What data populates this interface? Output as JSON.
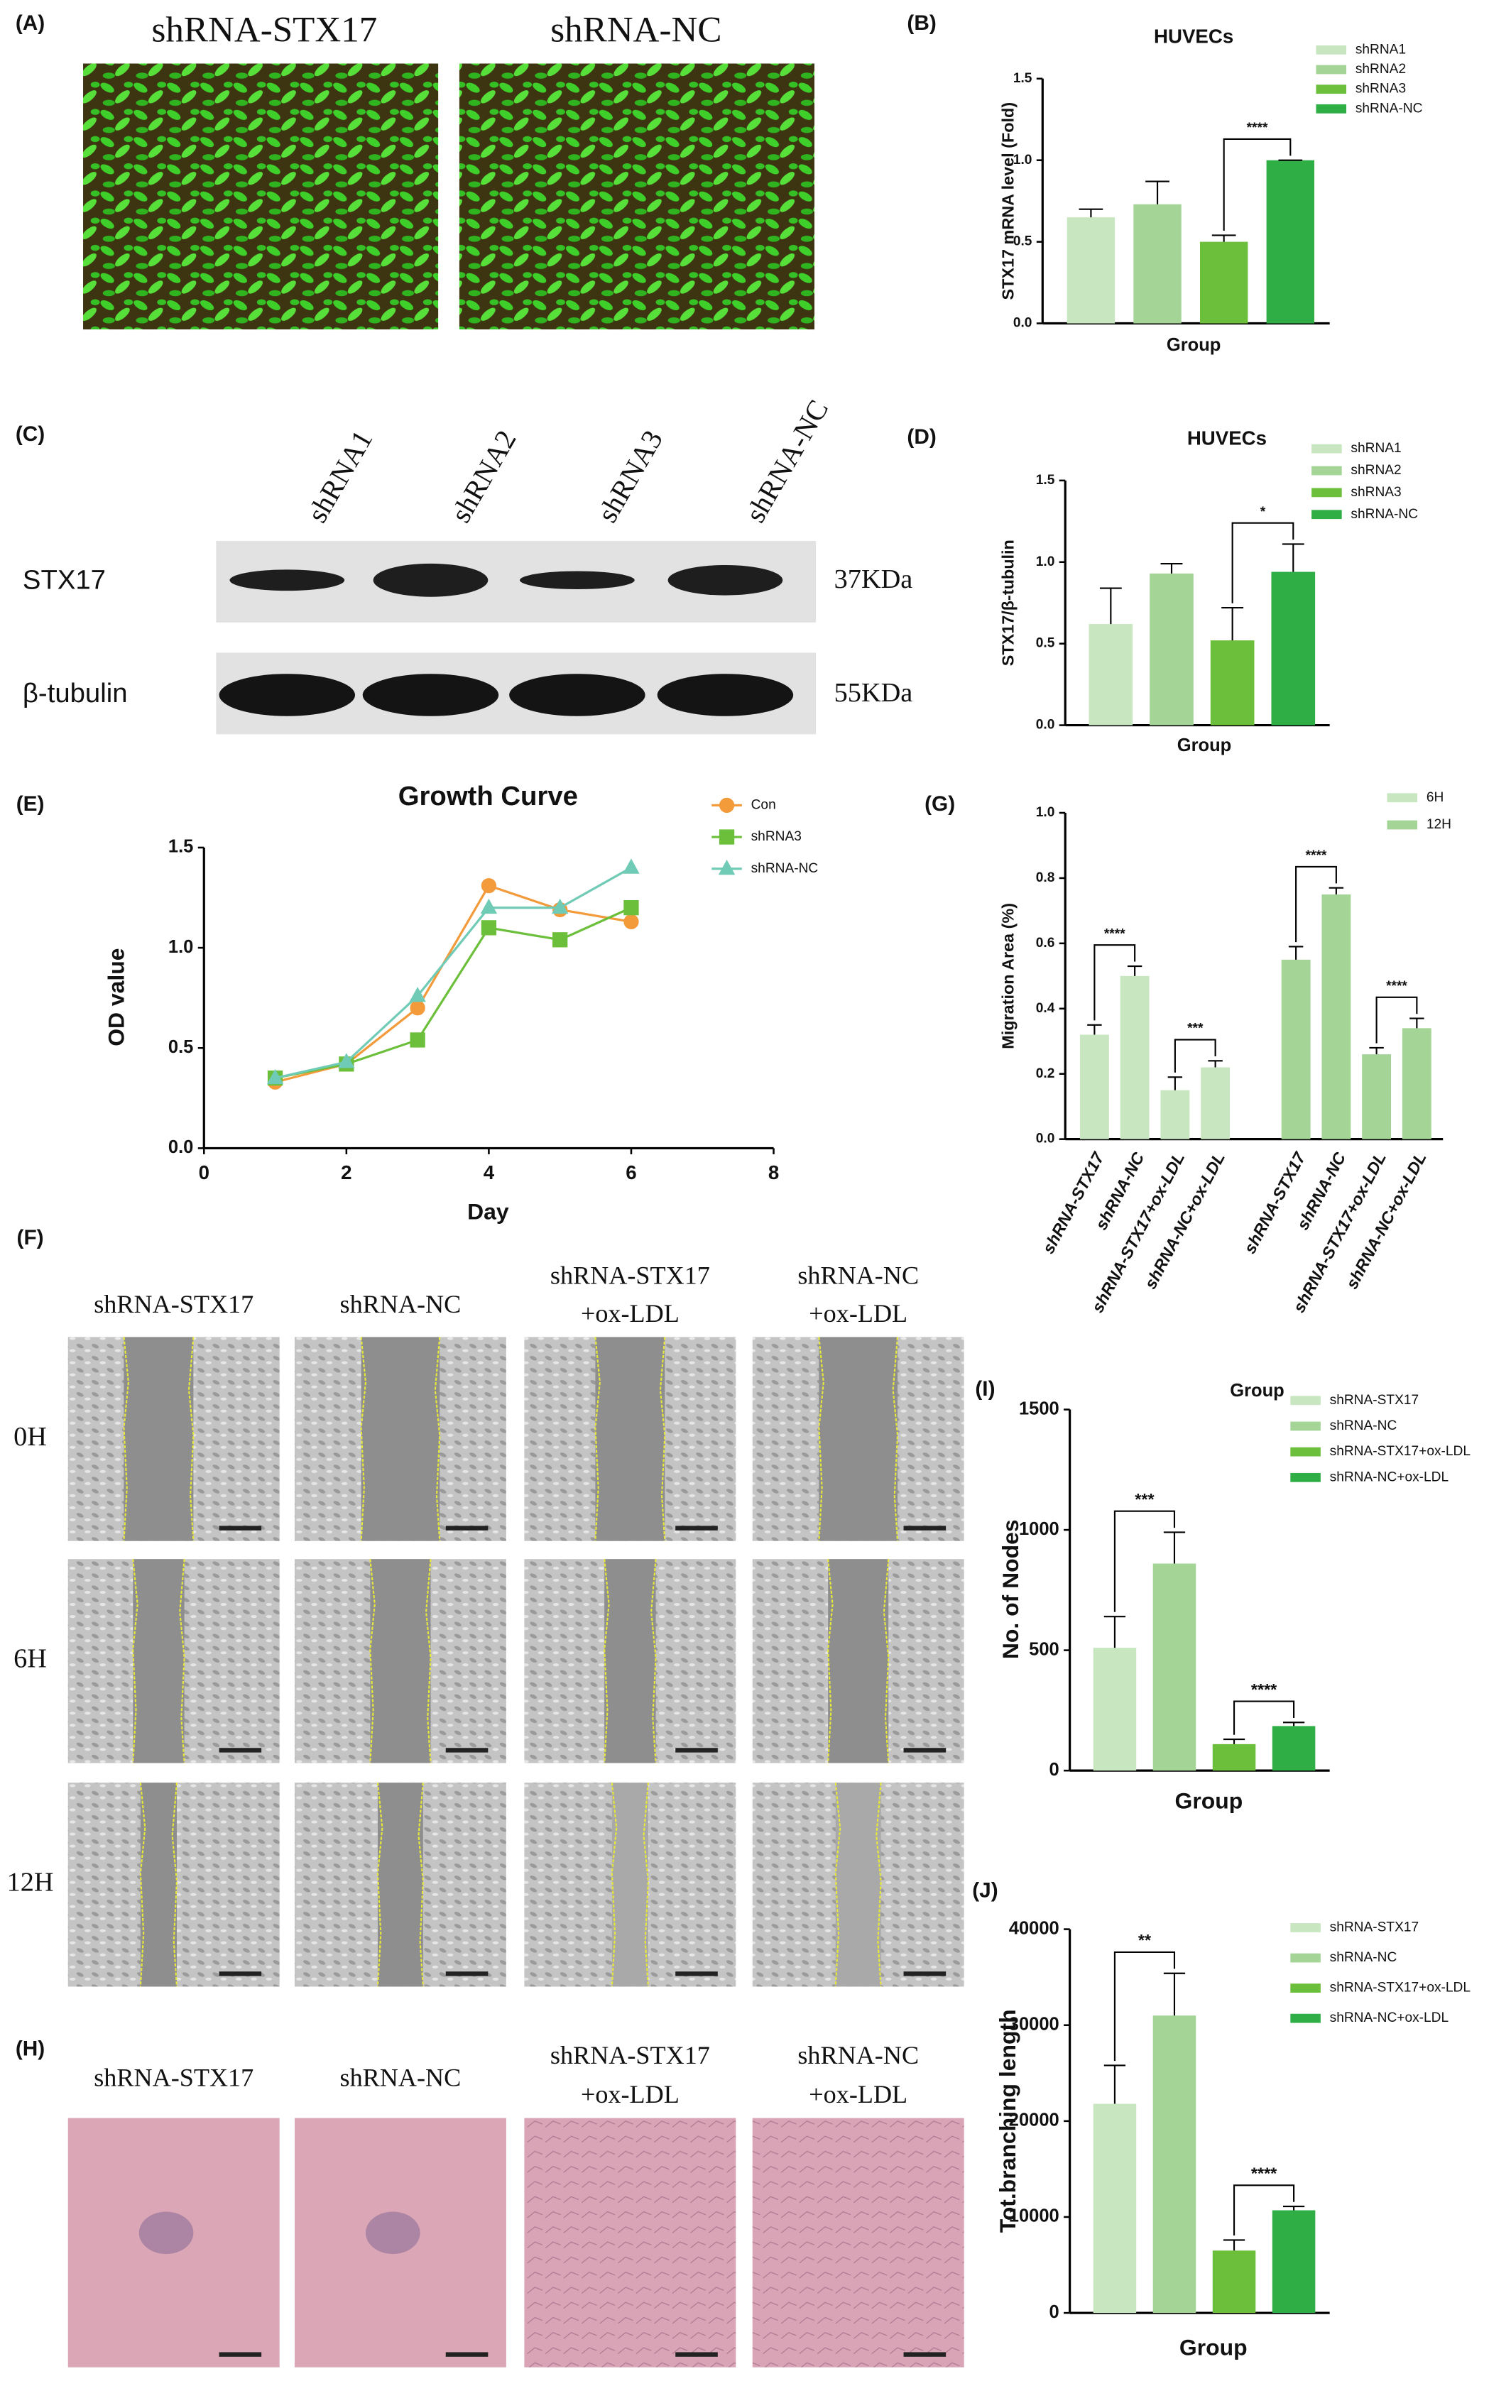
{
  "chart_data": [
    {
      "type": "bar",
      "title": "HUVECs",
      "ylabel": "STX17 mRNA level (Fold)",
      "xlabel": "Group",
      "categories": [
        "shRNA1",
        "shRNA2",
        "shRNA3",
        "shRNA-NC"
      ],
      "values": [
        0.65,
        0.73,
        0.5,
        1.0
      ],
      "errors": [
        0.05,
        0.14,
        0.04,
        0
      ],
      "colors": [
        "#c8e6bf",
        "#a4d596",
        "#6cbf3a",
        "#2eae45"
      ],
      "ylim": [
        0,
        1.5
      ],
      "yticks": [
        {
          "value": 0,
          "label": "0.0"
        },
        {
          "value": 0.5,
          "label": "0.5"
        },
        {
          "value": 1,
          "label": "1.0"
        },
        {
          "value": 1.5,
          "label": "1.5"
        }
      ],
      "significance": [
        {
          "from": 2,
          "to": 3,
          "label": "****"
        }
      ]
    },
    {
      "type": "bar",
      "title": "HUVECs",
      "ylabel": "STX17/β-tubulin",
      "xlabel": "Group",
      "categories": [
        "shRNA1",
        "shRNA2",
        "shRNA3",
        "shRNA-NC"
      ],
      "values": [
        0.62,
        0.93,
        0.52,
        0.94
      ],
      "errors": [
        0.22,
        0.06,
        0.2,
        0.17
      ],
      "colors": [
        "#c8e6bf",
        "#a4d596",
        "#6cbf3a",
        "#2eae45"
      ],
      "ylim": [
        0,
        1.5
      ],
      "yticks": [
        {
          "value": 0,
          "label": "0.0"
        },
        {
          "value": 0.5,
          "label": "0.5"
        },
        {
          "value": 1,
          "label": "1.0"
        },
        {
          "value": 1.5,
          "label": "1.5"
        }
      ],
      "significance": [
        {
          "from": 2,
          "to": 3,
          "label": "*"
        }
      ]
    },
    {
      "type": "line",
      "title": "Growth Curve",
      "ylabel": "OD value",
      "xlabel": "Day",
      "x": [
        1,
        2,
        3,
        4,
        5,
        6
      ],
      "series": [
        {
          "name": "Con",
          "color": "#f39a3b",
          "marker": "circle",
          "values": [
            0.33,
            0.42,
            0.7,
            1.31,
            1.19,
            1.13
          ]
        },
        {
          "name": "shRNA3",
          "color": "#6cbf3a",
          "marker": "square",
          "values": [
            0.35,
            0.42,
            0.54,
            1.1,
            1.04,
            1.2
          ]
        },
        {
          "name": "shRNA-NC",
          "color": "#6fcbb5",
          "marker": "triangle",
          "values": [
            0.35,
            0.43,
            0.76,
            1.2,
            1.2,
            1.4
          ]
        }
      ],
      "xlim": [
        0,
        8
      ],
      "xticks": [
        0,
        2,
        4,
        6,
        8
      ],
      "ylim": [
        0,
        1.5
      ],
      "yticks": [
        {
          "value": 0,
          "label": "0.0"
        },
        {
          "value": 0.5,
          "label": "0.5"
        },
        {
          "value": 1,
          "label": "1.0"
        },
        {
          "value": 1.5,
          "label": "1.5"
        }
      ]
    },
    {
      "type": "grouped-bar",
      "ylabel": "Migration Area (%)",
      "xlabel": "Group",
      "categories": [
        "shRNA-STX17",
        "shRNA-NC",
        "shRNA-STX17+ox-LDL",
        "shRNA-NC+ox-LDL"
      ],
      "series": [
        {
          "name": "6H",
          "color": "#c8e6bf",
          "values": [
            0.32,
            0.5,
            0.15,
            0.22
          ],
          "errors": [
            0.03,
            0.03,
            0.04,
            0.02
          ]
        },
        {
          "name": "12H",
          "color": "#a4d596",
          "values": [
            0.55,
            0.75,
            0.26,
            0.34
          ],
          "errors": [
            0.04,
            0.02,
            0.02,
            0.03
          ]
        }
      ],
      "ylim": [
        0,
        1.0
      ],
      "yticks": [
        {
          "value": 0,
          "label": "0.0"
        },
        {
          "value": 0.2,
          "label": "0.2"
        },
        {
          "value": 0.4,
          "label": "0.4"
        },
        {
          "value": 0.6,
          "label": "0.6"
        },
        {
          "value": 0.8,
          "label": "0.8"
        },
        {
          "value": 1,
          "label": "1.0"
        }
      ],
      "significance": [
        {
          "series": 0,
          "from": 0,
          "to": 1,
          "label": "****"
        },
        {
          "series": 0,
          "from": 2,
          "to": 3,
          "label": "***"
        },
        {
          "series": 1,
          "from": 0,
          "to": 1,
          "label": "****"
        },
        {
          "series": 1,
          "from": 2,
          "to": 3,
          "label": "****"
        }
      ]
    },
    {
      "type": "bar",
      "ylabel": "No. of Nodes",
      "xlabel": "Group",
      "categories": [
        "shRNA-STX17",
        "shRNA-NC",
        "shRNA-STX17+ox-LDL",
        "shRNA-NC+ox-LDL"
      ],
      "values": [
        510,
        860,
        110,
        185
      ],
      "errors": [
        130,
        130,
        20,
        15
      ],
      "colors": [
        "#c8e6bf",
        "#a4d596",
        "#6cbf3a",
        "#2eae45"
      ],
      "ylim": [
        0,
        1500
      ],
      "yticks": [
        0,
        500,
        1000,
        1500
      ],
      "significance": [
        {
          "from": 0,
          "to": 1,
          "label": "***"
        },
        {
          "from": 2,
          "to": 3,
          "label": "****"
        }
      ]
    },
    {
      "type": "bar",
      "ylabel": "Tot.branching length",
      "xlabel": "Group",
      "categories": [
        "shRNA-STX17",
        "shRNA-NC",
        "shRNA-STX17+ox-LDL",
        "shRNA-NC+ox-LDL"
      ],
      "values": [
        21800,
        31000,
        6500,
        10700
      ],
      "errors": [
        4000,
        4400,
        1100,
        400
      ],
      "colors": [
        "#c8e6bf",
        "#a4d596",
        "#6cbf3a",
        "#2eae45"
      ],
      "ylim": [
        0,
        40000
      ],
      "yticks": [
        0,
        10000,
        20000,
        30000,
        40000
      ],
      "significance": [
        {
          "from": 0,
          "to": 1,
          "label": "**"
        },
        {
          "from": 2,
          "to": 3,
          "label": "****"
        }
      ]
    }
  ],
  "figure": {
    "panel_labels": [
      "(A)",
      "(B)",
      "(C)",
      "(D)",
      "(E)",
      "(F)",
      "(G)",
      "(H)",
      "(I)",
      "(J)"
    ],
    "A": {
      "columns": [
        "shRNA-STX17",
        "shRNA-NC"
      ]
    },
    "C": {
      "lanes": [
        "shRNA1",
        "shRNA2",
        "shRNA3",
        "shRNA-NC"
      ],
      "rows": [
        {
          "protein": "STX17",
          "size": "37KDa"
        },
        {
          "protein": "β-tubulin",
          "size": "55KDa"
        }
      ]
    },
    "F": {
      "columns": [
        [
          "shRNA-STX17"
        ],
        [
          "shRNA-NC"
        ],
        [
          "shRNA-STX17",
          "+ox-LDL"
        ],
        [
          "shRNA-NC",
          "+ox-LDL"
        ]
      ],
      "rows": [
        "0H",
        "6H",
        "12H"
      ]
    },
    "H": {
      "columns": [
        [
          "shRNA-STX17"
        ],
        [
          "shRNA-NC"
        ],
        [
          "shRNA-STX17",
          "+ox-LDL"
        ],
        [
          "shRNA-NC",
          "+ox-LDL"
        ]
      ]
    }
  }
}
